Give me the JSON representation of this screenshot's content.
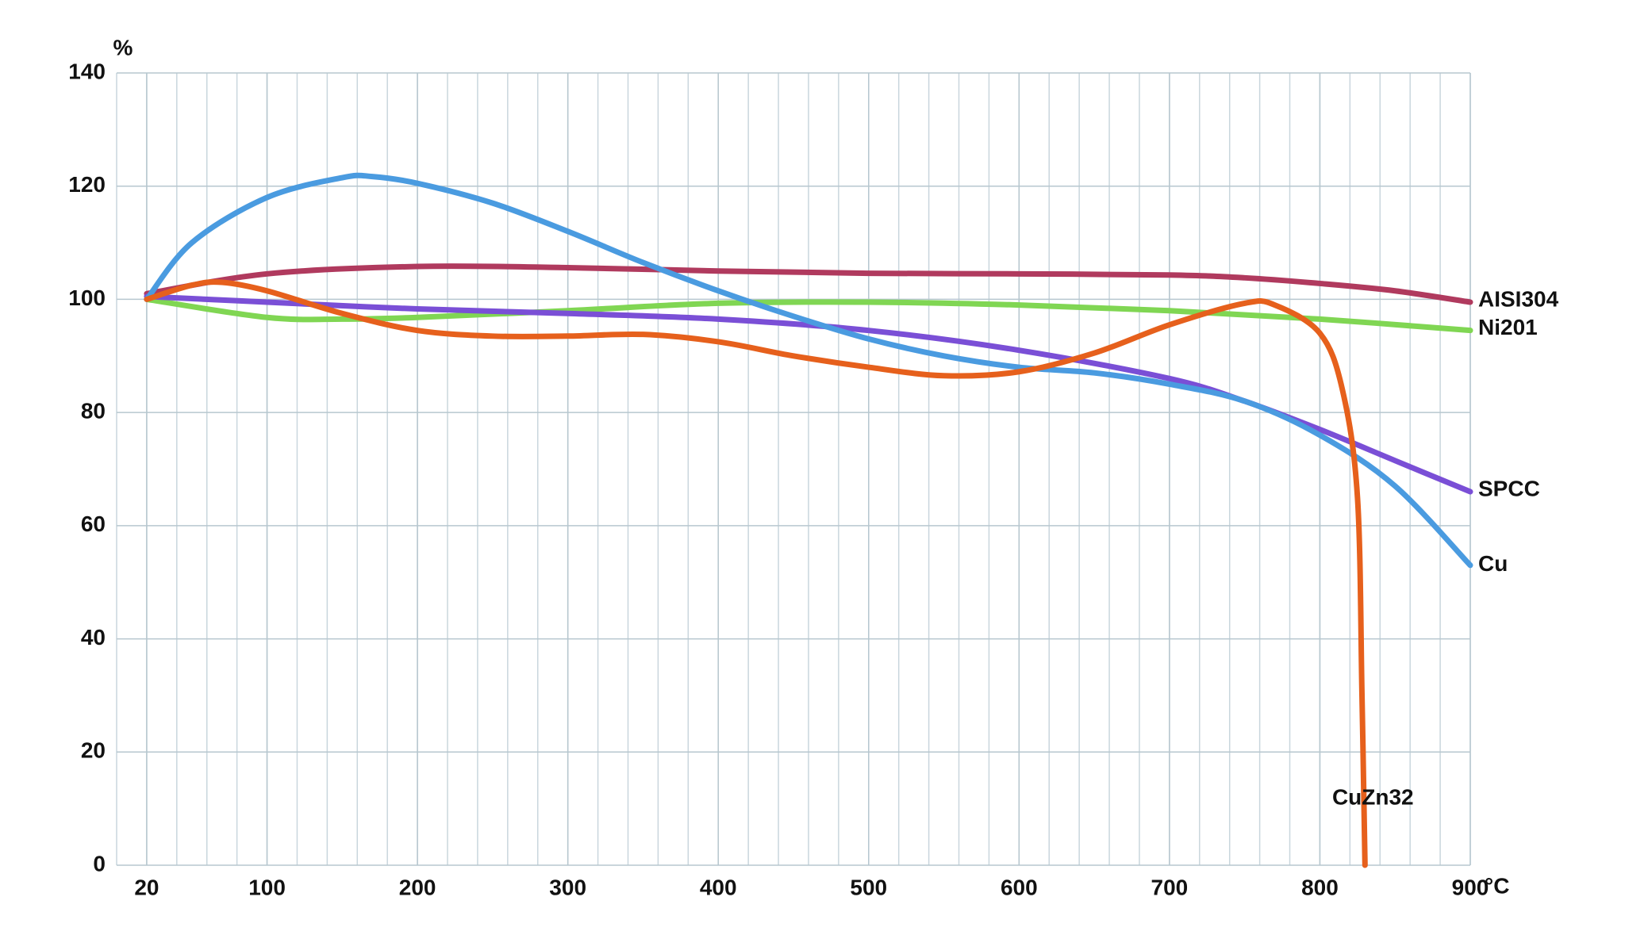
{
  "chart_data": {
    "type": "line",
    "x_label": "°C",
    "y_label": "%",
    "xlim": [
      0,
      900
    ],
    "ylim": [
      0,
      140
    ],
    "xticks": [
      20,
      100,
      200,
      300,
      400,
      500,
      600,
      700,
      800,
      900
    ],
    "yticks": [
      0,
      20,
      40,
      60,
      80,
      100,
      120,
      140
    ],
    "minor_xticks": [
      0,
      20,
      40,
      60,
      80,
      100,
      120,
      140,
      160,
      180,
      200,
      220,
      240,
      260,
      280,
      300,
      320,
      340,
      360,
      380,
      400,
      420,
      440,
      460,
      480,
      500,
      520,
      540,
      560,
      580,
      600,
      620,
      640,
      660,
      680,
      700,
      720,
      740,
      760,
      780,
      800,
      820,
      840,
      860,
      880,
      900
    ],
    "grid": true,
    "series": [
      {
        "name": "AISI304",
        "color": "#b03a5e",
        "x": [
          20,
          100,
          200,
          300,
          400,
          500,
          600,
          700,
          750,
          800,
          850,
          900
        ],
        "values": [
          101,
          104.5,
          105.8,
          105.6,
          105,
          104.6,
          104.5,
          104.3,
          103.8,
          102.8,
          101.5,
          99.5
        ]
      },
      {
        "name": "Ni201",
        "color": "#80d653",
        "x": [
          20,
          100,
          150,
          200,
          300,
          400,
          500,
          600,
          700,
          800,
          900
        ],
        "values": [
          100,
          96.8,
          96.5,
          96.8,
          98,
          99.3,
          99.5,
          99,
          98,
          96.5,
          94.5
        ]
      },
      {
        "name": "SPCC",
        "color": "#7a4fd6",
        "x": [
          20,
          100,
          200,
          300,
          400,
          500,
          600,
          700,
          750,
          800,
          850,
          900
        ],
        "values": [
          100.5,
          99.5,
          98.3,
          97.5,
          96.5,
          94.5,
          91,
          86,
          82,
          77,
          71.5,
          66
        ]
      },
      {
        "name": "Cu",
        "color": "#4a9be0",
        "x": [
          20,
          50,
          100,
          150,
          170,
          200,
          250,
          300,
          350,
          400,
          450,
          500,
          550,
          600,
          650,
          700,
          750,
          800,
          850,
          900
        ],
        "values": [
          100,
          110,
          118,
          121.5,
          121.7,
          120.5,
          117,
          112,
          106.5,
          101.5,
          97,
          93,
          90,
          88,
          87,
          85,
          82,
          76,
          67,
          53
        ]
      },
      {
        "name": "CuZn32",
        "color": "#e6601c",
        "x": [
          20,
          50,
          70,
          100,
          150,
          200,
          250,
          300,
          350,
          400,
          450,
          500,
          550,
          600,
          650,
          700,
          750,
          770,
          800,
          815,
          825,
          828,
          830
        ],
        "values": [
          100,
          102.5,
          103,
          101.5,
          97.5,
          94.5,
          93.5,
          93.5,
          93.8,
          92.5,
          90,
          88,
          86.5,
          87.2,
          90.5,
          95.5,
          99.3,
          99,
          94,
          84,
          65,
          30,
          0
        ]
      }
    ]
  }
}
